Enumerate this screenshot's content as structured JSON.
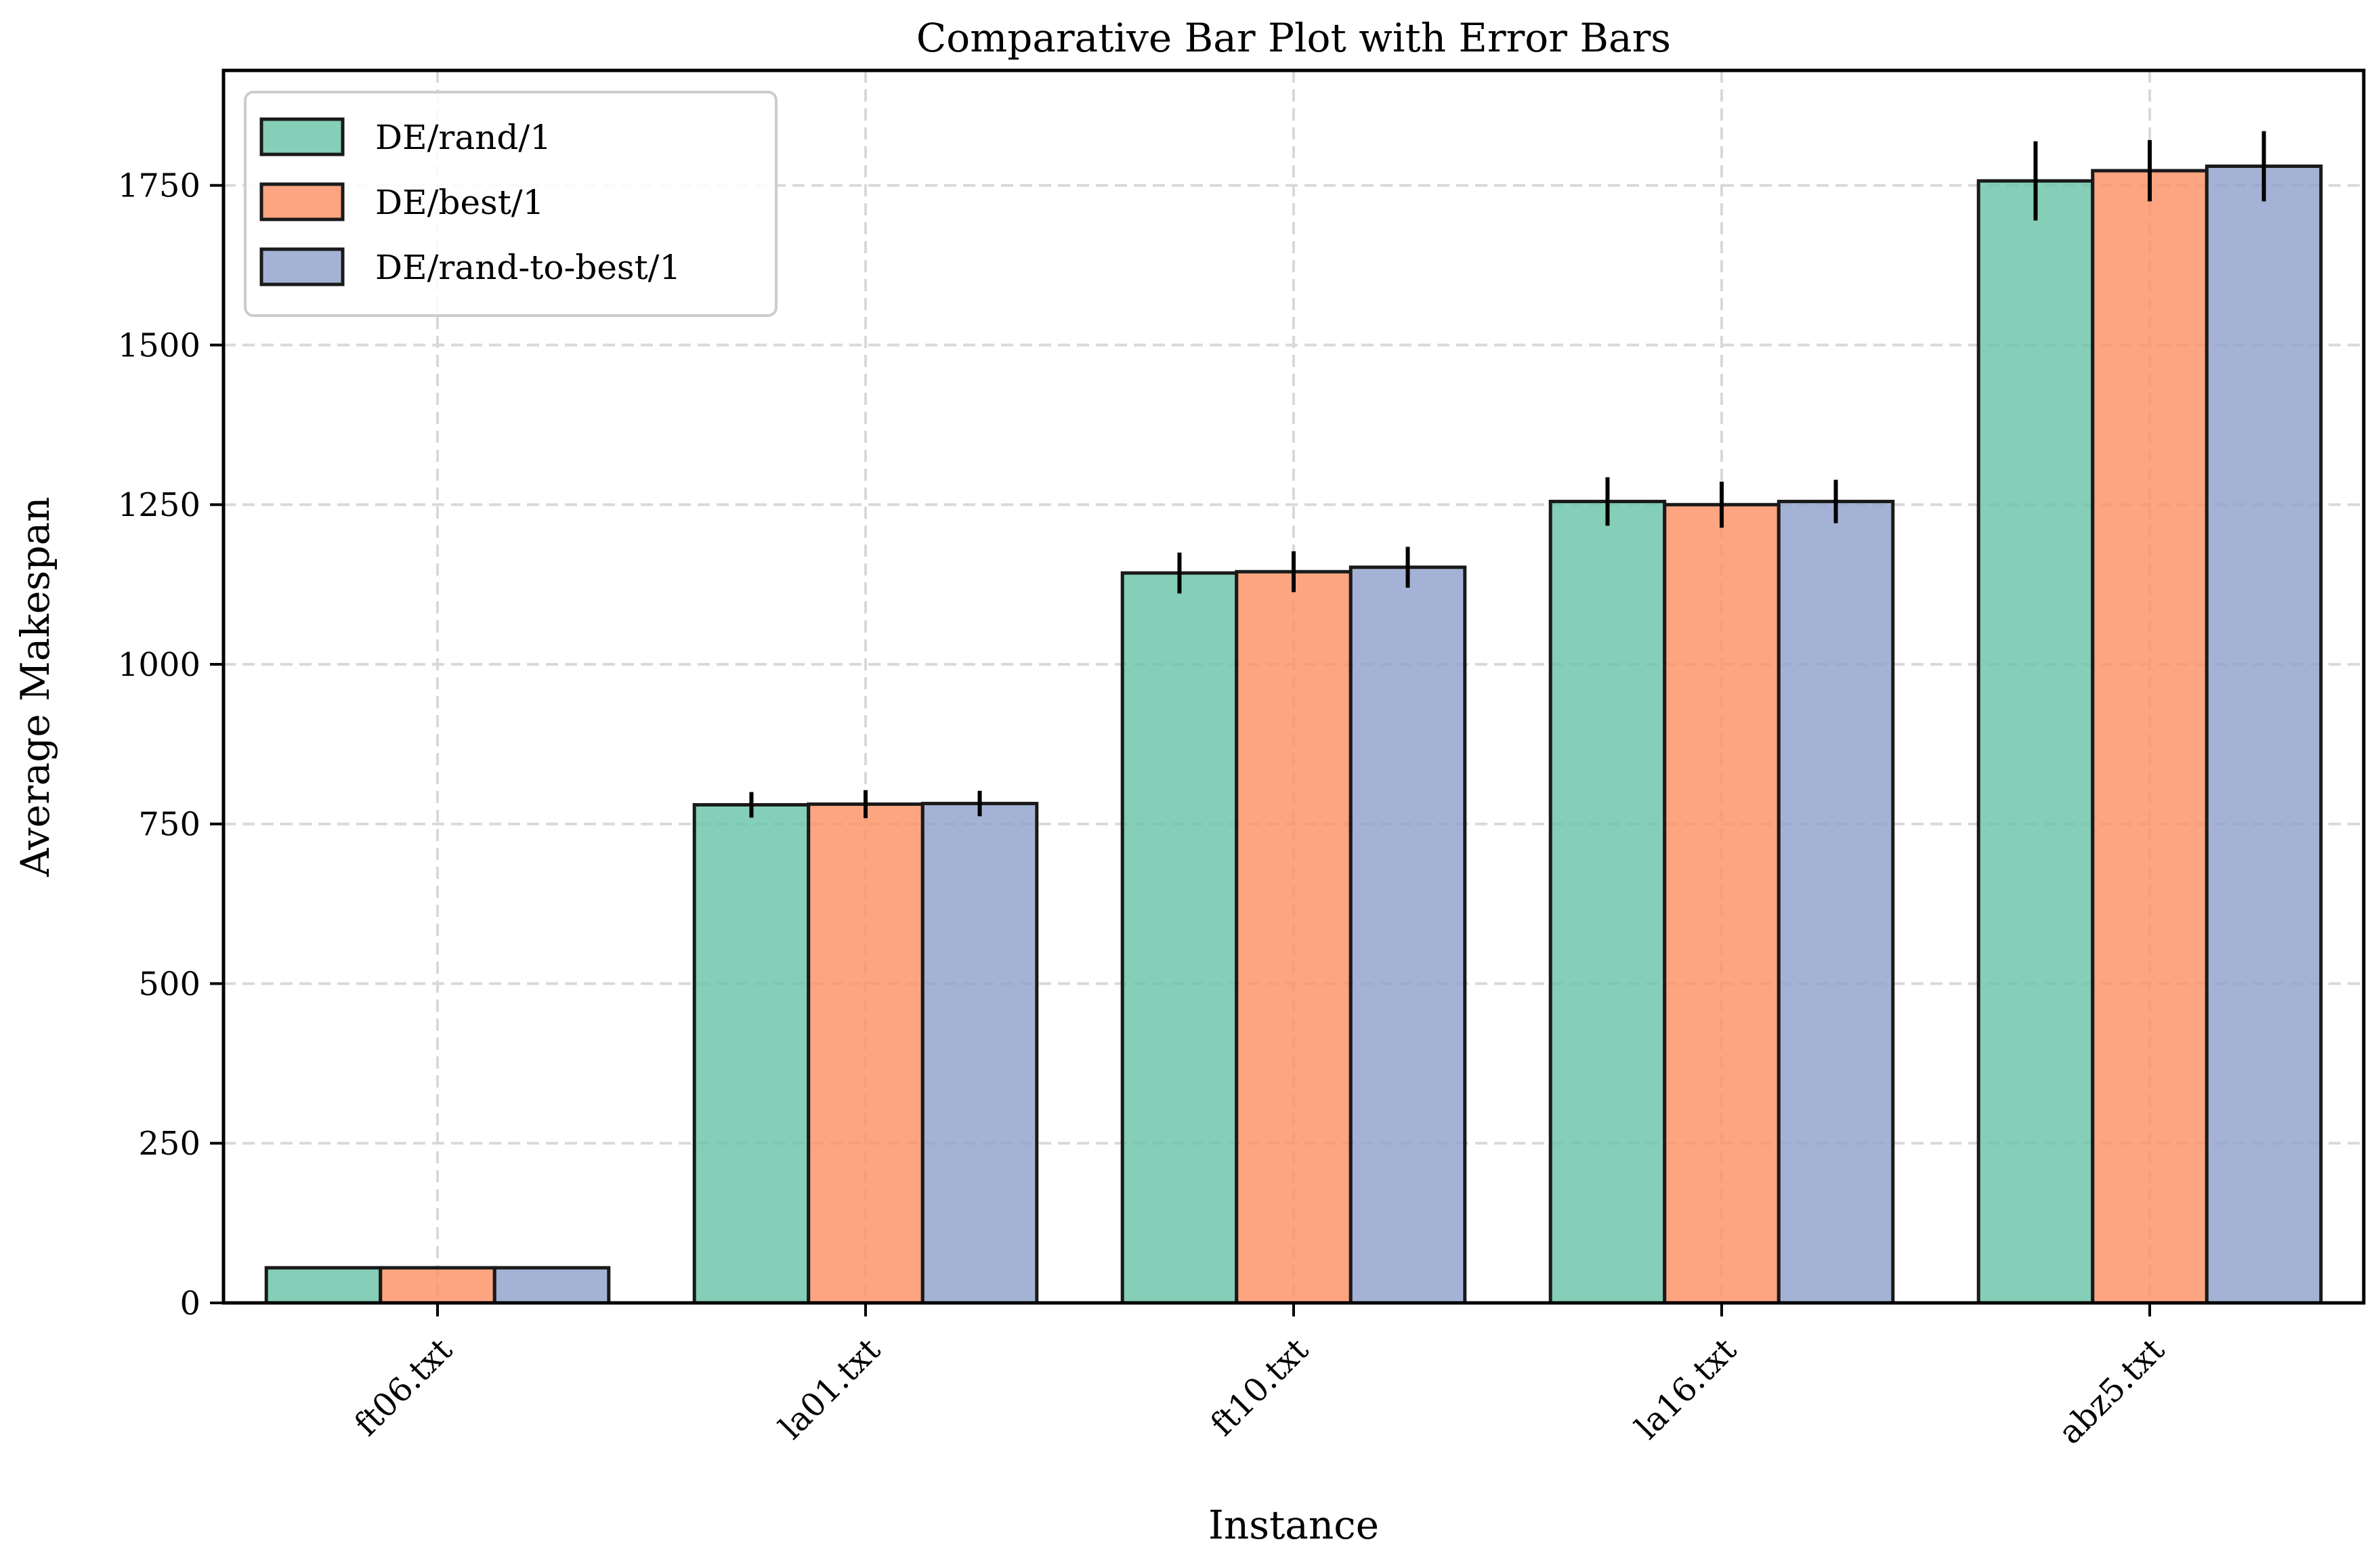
{
  "chart_data": {
    "type": "bar",
    "title": "Comparative Bar Plot with Error Bars",
    "xlabel": "Instance",
    "ylabel": "Average Makespan",
    "categories": [
      "ft06.txt",
      "la01.txt",
      "ft10.txt",
      "la16.txt",
      "abz5.txt"
    ],
    "series": [
      {
        "name": "DE/rand/1",
        "color": "#66c2a5",
        "values": [
          55,
          780,
          1143,
          1255,
          1757
        ],
        "errors": [
          0,
          20,
          32,
          38,
          62
        ]
      },
      {
        "name": "DE/best/1",
        "color": "#fc8d62",
        "values": [
          55,
          781,
          1145,
          1250,
          1773
        ],
        "errors": [
          0,
          22,
          32,
          36,
          48
        ]
      },
      {
        "name": "DE/rand-to-best/1",
        "color": "#8da0cb",
        "values": [
          55,
          782,
          1152,
          1255,
          1780
        ],
        "errors": [
          0,
          20,
          32,
          34,
          55
        ]
      }
    ],
    "ylim": [
      0,
      1930
    ],
    "yticks": [
      0,
      250,
      500,
      750,
      1000,
      1250,
      1500,
      1750
    ],
    "grid": true,
    "legend_position": "top-left"
  }
}
